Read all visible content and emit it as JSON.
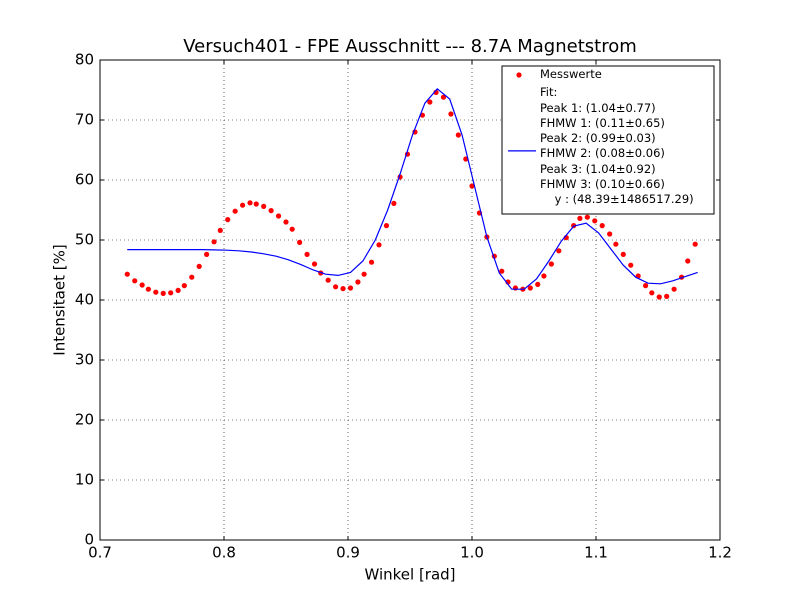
{
  "chart_data": {
    "type": "scatter",
    "title": "Versuch401 - FPE Ausschnitt --- 8.7A Magnetstrom",
    "x_label": "Winkel [rad]",
    "y_label": "Intensitaet [%]",
    "xlim": [
      0.7,
      1.2
    ],
    "xticks": [
      0.7,
      0.8,
      0.9,
      {
        "value": 1,
        "label": "1.0"
      },
      1.1,
      1.2
    ],
    "ylim": [
      0,
      80
    ],
    "yticks": [
      0,
      10,
      20,
      30,
      40,
      50,
      60,
      70,
      80
    ],
    "grid": true,
    "legend": "upper right",
    "series": [
      {
        "name": "Messwerte",
        "color": "#ff0000",
        "kind": "points",
        "x": [
          0.722,
          0.728,
          0.734,
          0.739,
          0.745,
          0.751,
          0.757,
          0.763,
          0.768,
          0.774,
          0.78,
          0.786,
          0.792,
          0.797,
          0.803,
          0.809,
          0.815,
          0.821,
          0.826,
          0.832,
          0.838,
          0.844,
          0.85,
          0.855,
          0.861,
          0.867,
          0.873,
          0.878,
          0.884,
          0.89,
          0.896,
          0.902,
          0.908,
          0.913,
          0.919,
          0.925,
          0.931,
          0.937,
          0.942,
          0.948,
          0.954,
          0.96,
          0.966,
          0.971,
          0.977,
          0.983,
          0.989,
          0.995,
          1.0,
          1.006,
          1.012,
          1.018,
          1.024,
          1.029,
          1.035,
          1.041,
          1.047,
          1.053,
          1.058,
          1.064,
          1.07,
          1.076,
          1.082,
          1.087,
          1.093,
          1.099,
          1.105,
          1.111,
          1.116,
          1.122,
          1.128,
          1.134,
          1.14,
          1.145,
          1.151,
          1.157,
          1.163,
          1.169,
          1.174,
          1.18
        ],
        "values": [
          44.3,
          43.2,
          42.5,
          41.8,
          41.3,
          41.1,
          41.2,
          41.6,
          42.4,
          43.8,
          45.6,
          47.6,
          49.7,
          51.6,
          53.4,
          54.8,
          55.8,
          56.2,
          56.0,
          55.6,
          54.9,
          54.0,
          53.0,
          51.8,
          49.6,
          47.6,
          46.0,
          44.5,
          43.3,
          42.2,
          41.9,
          42.0,
          43.0,
          44.3,
          46.3,
          49.2,
          52.4,
          56.1,
          60.5,
          64.3,
          68.0,
          70.8,
          73.0,
          74.6,
          73.8,
          71.0,
          67.5,
          63.5,
          59.0,
          54.5,
          50.5,
          47.3,
          44.8,
          43.0,
          42.0,
          41.8,
          42.0,
          42.6,
          44.0,
          46.0,
          48.2,
          50.4,
          52.4,
          53.6,
          53.8,
          53.2,
          52.4,
          51.0,
          49.3,
          47.6,
          45.8,
          44.0,
          42.4,
          41.2,
          40.5,
          40.6,
          41.8,
          43.8,
          46.5,
          49.3
        ]
      },
      {
        "name": "Fit:\nPeak 1: (1.04±0.77)\nFHMW 1: (0.11±0.65)\nPeak 2: (0.99±0.03)\nFHMW 2: (0.08±0.06)\nPeak 3: (1.04±0.92)\nFHMW 3: (0.10±0.66)\n    y : (48.39±1486517.29)",
        "color": "#0000ff",
        "kind": "line",
        "x": [
          0.722,
          0.732,
          0.742,
          0.752,
          0.762,
          0.772,
          0.782,
          0.792,
          0.802,
          0.812,
          0.822,
          0.832,
          0.842,
          0.852,
          0.862,
          0.872,
          0.882,
          0.892,
          0.902,
          0.912,
          0.922,
          0.932,
          0.942,
          0.952,
          0.962,
          0.972,
          0.982,
          0.992,
          1.002,
          1.012,
          1.022,
          1.032,
          1.042,
          1.052,
          1.062,
          1.072,
          1.082,
          1.092,
          1.102,
          1.112,
          1.122,
          1.132,
          1.142,
          1.152,
          1.162,
          1.172,
          1.182
        ],
        "values": [
          48.4,
          48.4,
          48.4,
          48.4,
          48.4,
          48.4,
          48.4,
          48.35,
          48.3,
          48.2,
          48.0,
          47.7,
          47.3,
          46.7,
          45.9,
          45.0,
          44.3,
          44.1,
          44.6,
          46.5,
          50.0,
          55.0,
          61.0,
          67.5,
          72.8,
          75.2,
          73.5,
          67.5,
          59.0,
          50.5,
          44.5,
          41.8,
          41.8,
          43.5,
          46.5,
          49.8,
          52.3,
          52.8,
          51.2,
          48.5,
          45.8,
          43.8,
          42.8,
          42.7,
          43.2,
          43.9,
          44.6
        ]
      }
    ]
  }
}
